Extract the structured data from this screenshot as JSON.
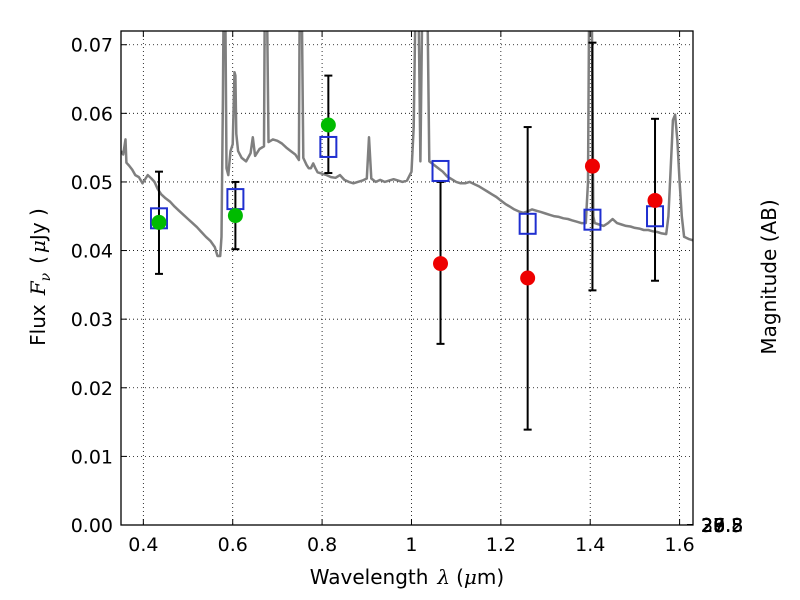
{
  "chart_data": {
    "type": "scatter",
    "xlabel": "Wavelength",
    "xlabel_symbol": "λ",
    "xlabel_unit_open": "(",
    "xlabel_unit_mu": "μ",
    "xlabel_unit_rest": "m)",
    "ylabel": "Flux",
    "ylabel_symbol": "F",
    "ylabel_subscript": "ν",
    "ylabel_unit_open": "(",
    "ylabel_unit_mu": "μ",
    "ylabel_unit_rest": "Jy )",
    "y2label": "Magnitude (AB)",
    "xlim": [
      0.35,
      1.63
    ],
    "ylim": [
      0.0,
      0.072
    ],
    "x_ticks": [
      0.4,
      0.6,
      0.8,
      1.0,
      1.2,
      1.4,
      1.6
    ],
    "x_tick_labels": [
      "0.4",
      "0.6",
      "0.8",
      "1",
      "1.2",
      "1.4",
      "1.6"
    ],
    "y_ticks": [
      0.0,
      0.01,
      0.02,
      0.03,
      0.04,
      0.05,
      0.06,
      0.07
    ],
    "y_tick_labels": [
      "0.00",
      "0.01",
      "0.02",
      "0.03",
      "0.04",
      "0.05",
      "0.06",
      "0.07"
    ],
    "y2_ticks": [
      26.8,
      27,
      27.2,
      27.5,
      28,
      28.5,
      29,
      30
    ],
    "y2_tick_labels": [
      "26.8",
      "27",
      "27.2",
      "27.5",
      "28",
      "28.5",
      "29",
      "30"
    ],
    "grid": true,
    "colors": {
      "sed": "#7f7f7f",
      "green": "#00bb00",
      "red": "#ee0000",
      "model": "#1f2fd0",
      "errorbar": "#000000"
    },
    "observed": [
      {
        "x": 0.435,
        "y": 0.0441,
        "yerr_low": 0.0366,
        "yerr_high": 0.0515,
        "color": "green"
      },
      {
        "x": 0.606,
        "y": 0.0451,
        "yerr_low": 0.0402,
        "yerr_high": 0.05,
        "color": "green"
      },
      {
        "x": 0.814,
        "y": 0.0583,
        "yerr_low": 0.0513,
        "yerr_high": 0.0655,
        "color": "green"
      },
      {
        "x": 1.065,
        "y": 0.0381,
        "yerr_low": 0.0264,
        "yerr_high": 0.05,
        "color": "red"
      },
      {
        "x": 1.26,
        "y": 0.036,
        "yerr_low": 0.0139,
        "yerr_high": 0.058,
        "color": "red"
      },
      {
        "x": 1.405,
        "y": 0.0523,
        "yerr_low": 0.0342,
        "yerr_high": 0.0703,
        "color": "red"
      },
      {
        "x": 1.545,
        "y": 0.0473,
        "yerr_low": 0.0356,
        "yerr_high": 0.0592,
        "color": "red"
      }
    ],
    "model_points": [
      {
        "x": 0.435,
        "y": 0.0447
      },
      {
        "x": 0.606,
        "y": 0.0475
      },
      {
        "x": 0.814,
        "y": 0.0551
      },
      {
        "x": 1.065,
        "y": 0.0516
      },
      {
        "x": 1.26,
        "y": 0.0439
      },
      {
        "x": 1.405,
        "y": 0.0445
      },
      {
        "x": 1.545,
        "y": 0.045
      }
    ],
    "sed_curve": [
      [
        0.35,
        0.0545
      ],
      [
        0.355,
        0.054
      ],
      [
        0.36,
        0.0562
      ],
      [
        0.362,
        0.0528
      ],
      [
        0.368,
        0.0524
      ],
      [
        0.375,
        0.0518
      ],
      [
        0.382,
        0.051
      ],
      [
        0.39,
        0.0507
      ],
      [
        0.398,
        0.0498
      ],
      [
        0.405,
        0.0505
      ],
      [
        0.41,
        0.051
      ],
      [
        0.418,
        0.0505
      ],
      [
        0.425,
        0.05
      ],
      [
        0.432,
        0.049
      ],
      [
        0.44,
        0.0482
      ],
      [
        0.45,
        0.0476
      ],
      [
        0.46,
        0.0471
      ],
      [
        0.47,
        0.0464
      ],
      [
        0.48,
        0.0458
      ],
      [
        0.49,
        0.0452
      ],
      [
        0.5,
        0.0446
      ],
      [
        0.51,
        0.044
      ],
      [
        0.52,
        0.0434
      ],
      [
        0.53,
        0.0427
      ],
      [
        0.54,
        0.042
      ],
      [
        0.55,
        0.0414
      ],
      [
        0.56,
        0.0405
      ],
      [
        0.566,
        0.0392
      ],
      [
        0.572,
        0.0392
      ],
      [
        0.575,
        0.042
      ],
      [
        0.578,
        0.062
      ],
      [
        0.58,
        0.08
      ],
      [
        0.583,
        0.08
      ],
      [
        0.586,
        0.052
      ],
      [
        0.59,
        0.051
      ],
      [
        0.595,
        0.0545
      ],
      [
        0.6,
        0.0555
      ],
      [
        0.604,
        0.066
      ],
      [
        0.606,
        0.0655
      ],
      [
        0.608,
        0.057
      ],
      [
        0.612,
        0.0545
      ],
      [
        0.62,
        0.0535
      ],
      [
        0.63,
        0.053
      ],
      [
        0.64,
        0.0542
      ],
      [
        0.645,
        0.0565
      ],
      [
        0.65,
        0.0538
      ],
      [
        0.66,
        0.0548
      ],
      [
        0.67,
        0.0552
      ],
      [
        0.672,
        0.08
      ],
      [
        0.676,
        0.08
      ],
      [
        0.68,
        0.0558
      ],
      [
        0.69,
        0.0562
      ],
      [
        0.7,
        0.056
      ],
      [
        0.71,
        0.0556
      ],
      [
        0.72,
        0.055
      ],
      [
        0.73,
        0.0545
      ],
      [
        0.74,
        0.054
      ],
      [
        0.748,
        0.0532
      ],
      [
        0.75,
        0.08
      ],
      [
        0.754,
        0.08
      ],
      [
        0.758,
        0.0535
      ],
      [
        0.765,
        0.0525
      ],
      [
        0.77,
        0.052
      ],
      [
        0.775,
        0.052
      ],
      [
        0.78,
        0.0527
      ],
      [
        0.785,
        0.052
      ],
      [
        0.79,
        0.0514
      ],
      [
        0.8,
        0.0512
      ],
      [
        0.81,
        0.051
      ],
      [
        0.82,
        0.0507
      ],
      [
        0.83,
        0.0506
      ],
      [
        0.84,
        0.051
      ],
      [
        0.85,
        0.0503
      ],
      [
        0.86,
        0.05
      ],
      [
        0.87,
        0.0498
      ],
      [
        0.88,
        0.05
      ],
      [
        0.89,
        0.0502
      ],
      [
        0.9,
        0.0505
      ],
      [
        0.905,
        0.0565
      ],
      [
        0.91,
        0.0505
      ],
      [
        0.92,
        0.05
      ],
      [
        0.93,
        0.0503
      ],
      [
        0.94,
        0.05
      ],
      [
        0.95,
        0.0502
      ],
      [
        0.96,
        0.0504
      ],
      [
        0.97,
        0.0502
      ],
      [
        0.98,
        0.05
      ],
      [
        0.99,
        0.0502
      ],
      [
        1.0,
        0.0515
      ],
      [
        1.005,
        0.058
      ],
      [
        1.01,
        0.08
      ],
      [
        1.015,
        0.08
      ],
      [
        1.02,
        0.053
      ],
      [
        1.025,
        0.08
      ],
      [
        1.035,
        0.08
      ],
      [
        1.04,
        0.053
      ],
      [
        1.05,
        0.0525
      ],
      [
        1.06,
        0.052
      ],
      [
        1.07,
        0.0515
      ],
      [
        1.08,
        0.0508
      ],
      [
        1.09,
        0.0504
      ],
      [
        1.1,
        0.05
      ],
      [
        1.11,
        0.0498
      ],
      [
        1.12,
        0.0498
      ],
      [
        1.13,
        0.05
      ],
      [
        1.14,
        0.0497
      ],
      [
        1.15,
        0.0494
      ],
      [
        1.16,
        0.049
      ],
      [
        1.17,
        0.0486
      ],
      [
        1.18,
        0.0482
      ],
      [
        1.19,
        0.0478
      ],
      [
        1.2,
        0.0473
      ],
      [
        1.21,
        0.0468
      ],
      [
        1.22,
        0.0464
      ],
      [
        1.23,
        0.046
      ],
      [
        1.24,
        0.0457
      ],
      [
        1.25,
        0.0455
      ],
      [
        1.26,
        0.0457
      ],
      [
        1.27,
        0.046
      ],
      [
        1.28,
        0.0458
      ],
      [
        1.29,
        0.0456
      ],
      [
        1.3,
        0.0454
      ],
      [
        1.31,
        0.0452
      ],
      [
        1.32,
        0.045
      ],
      [
        1.33,
        0.0449
      ],
      [
        1.34,
        0.0447
      ],
      [
        1.35,
        0.0446
      ],
      [
        1.36,
        0.0444
      ],
      [
        1.37,
        0.0442
      ],
      [
        1.38,
        0.044
      ],
      [
        1.39,
        0.044
      ],
      [
        1.395,
        0.05
      ],
      [
        1.398,
        0.08
      ],
      [
        1.403,
        0.08
      ],
      [
        1.407,
        0.045
      ],
      [
        1.41,
        0.044
      ],
      [
        1.42,
        0.0438
      ],
      [
        1.43,
        0.0436
      ],
      [
        1.44,
        0.044
      ],
      [
        1.45,
        0.0446
      ],
      [
        1.46,
        0.044
      ],
      [
        1.47,
        0.0438
      ],
      [
        1.48,
        0.0436
      ],
      [
        1.49,
        0.0435
      ],
      [
        1.5,
        0.0433
      ],
      [
        1.51,
        0.0432
      ],
      [
        1.52,
        0.043
      ],
      [
        1.53,
        0.043
      ],
      [
        1.54,
        0.0428
      ],
      [
        1.55,
        0.0427
      ],
      [
        1.56,
        0.0425
      ],
      [
        1.57,
        0.0424
      ],
      [
        1.575,
        0.045
      ],
      [
        1.58,
        0.052
      ],
      [
        1.583,
        0.056
      ],
      [
        1.585,
        0.059
      ],
      [
        1.59,
        0.0598
      ],
      [
        1.595,
        0.056
      ],
      [
        1.6,
        0.05
      ],
      [
        1.605,
        0.045
      ],
      [
        1.61,
        0.042
      ],
      [
        1.62,
        0.0417
      ],
      [
        1.63,
        0.0415
      ]
    ]
  }
}
